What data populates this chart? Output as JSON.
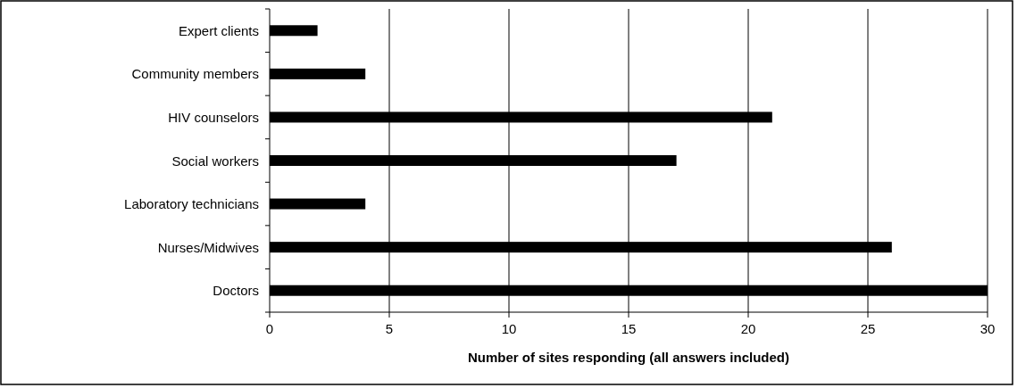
{
  "chart_data": {
    "type": "bar",
    "orientation": "horizontal",
    "xlabel": "Number of sites responding (all answers included)",
    "categories": [
      "Expert clients",
      "Community members",
      "HIV counselors",
      "Social workers",
      "Laboratory technicians",
      "Nurses/Midwives",
      "Doctors"
    ],
    "values": [
      2,
      4,
      21,
      17,
      4,
      26,
      30
    ],
    "color": "#000000",
    "xlim": [
      0,
      30
    ],
    "xticks": [
      0,
      5,
      10,
      15,
      20,
      25,
      30
    ],
    "grid": "x"
  }
}
